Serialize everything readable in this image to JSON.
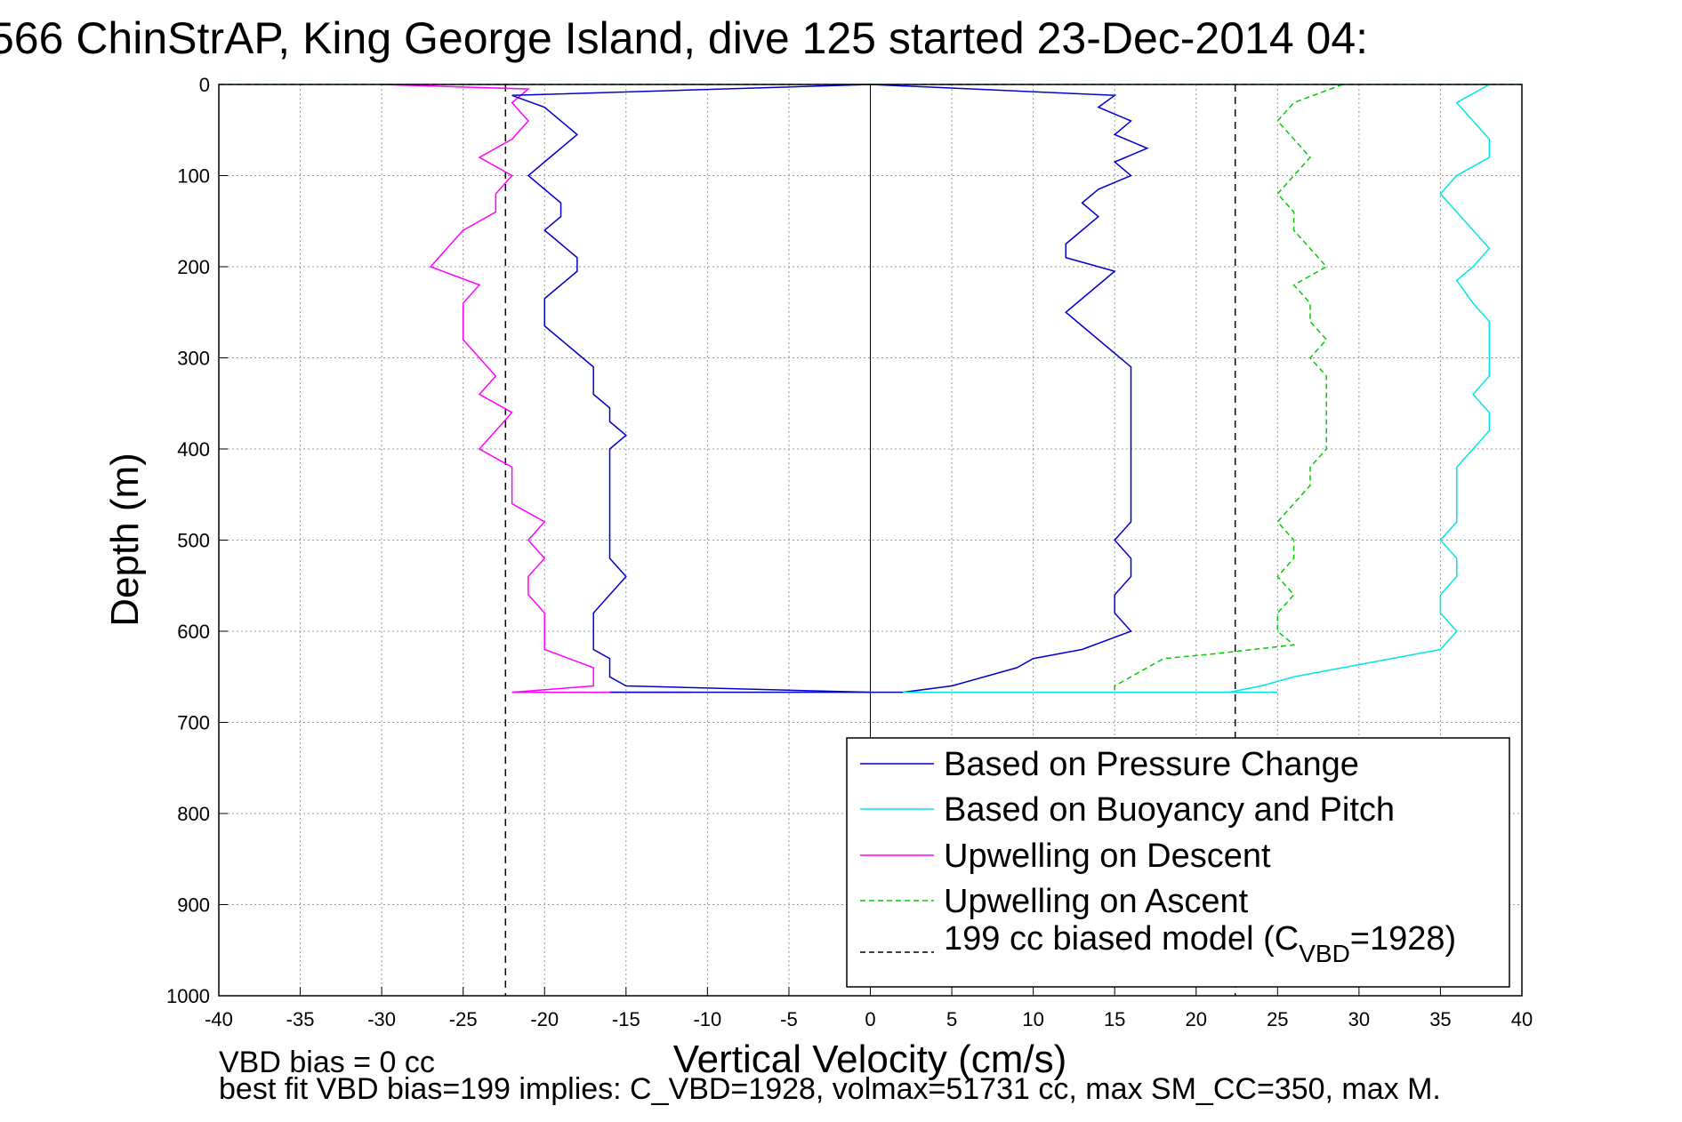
{
  "chart_data": {
    "type": "line",
    "title": "566 ChinStrAP, King George Island, dive 125 started 23-Dec-2014 04:",
    "xlabel": "Vertical Velocity (cm/s)",
    "ylabel": "Depth (m)",
    "xlim": [
      -40,
      40
    ],
    "ylim": [
      0,
      1000
    ],
    "y_reversed": true,
    "grid": true,
    "x_ticks": [
      "-40",
      "-35",
      "-30",
      "-25",
      "-20",
      "-15",
      "-10",
      "-5",
      "0",
      "5",
      "10",
      "15",
      "20",
      "25",
      "30",
      "35",
      "40"
    ],
    "y_ticks": [
      "0",
      "100",
      "200",
      "300",
      "400",
      "500",
      "600",
      "700",
      "800",
      "900",
      "1000"
    ],
    "legend_position": "bottom-right",
    "series": [
      {
        "name": "Based on Pressure Change",
        "color": "#0000cc",
        "style": "solid",
        "depth": [
          0,
          12,
          25,
          40,
          55,
          70,
          85,
          100,
          115,
          130,
          145,
          160,
          175,
          190,
          205,
          220,
          235,
          250,
          265,
          280,
          295,
          310,
          325,
          340,
          355,
          370,
          385,
          400,
          420,
          440,
          460,
          480,
          500,
          520,
          540,
          560,
          580,
          600,
          620,
          630,
          640,
          650,
          660,
          667
        ],
        "descent": [
          0,
          -22,
          -20,
          -19,
          -18,
          -19,
          -20,
          -21,
          -20,
          -19,
          -19,
          -20,
          -19,
          -18,
          -18,
          -19,
          -20,
          -20,
          -20,
          -19,
          -18,
          -17,
          -17,
          -17,
          -16,
          -16,
          -15,
          -16,
          -16,
          -16,
          -16,
          -16,
          -16,
          -16,
          -15,
          -16,
          -17,
          -17,
          -17,
          -16,
          -16,
          -16,
          -15,
          0
        ],
        "ascent": [
          0,
          15,
          14,
          16,
          15,
          17,
          15,
          16,
          14,
          13,
          14,
          13,
          12,
          12,
          15,
          14,
          13,
          12,
          13,
          14,
          15,
          16,
          16,
          16,
          16,
          16,
          16,
          16,
          16,
          16,
          16,
          16,
          15,
          16,
          16,
          15,
          15,
          16,
          13,
          10,
          9,
          7,
          5,
          2
        ]
      },
      {
        "name": "Based on Buoyancy and Pitch",
        "color": "#00e5e5",
        "style": "solid",
        "depth": [
          0,
          20,
          40,
          60,
          80,
          100,
          120,
          140,
          160,
          180,
          200,
          215,
          240,
          260,
          280,
          300,
          320,
          340,
          360,
          380,
          400,
          420,
          440,
          460,
          480,
          500,
          520,
          540,
          560,
          580,
          600,
          620,
          630,
          640,
          650,
          660,
          667
        ],
        "values": [
          38,
          36,
          37,
          38,
          38,
          36,
          35,
          36,
          37,
          38,
          37,
          36,
          37,
          38,
          38,
          38,
          38,
          37,
          38,
          38,
          37,
          36,
          36,
          36,
          36,
          35,
          36,
          36,
          35,
          35,
          36,
          35,
          32,
          29,
          26,
          24,
          22
        ]
      },
      {
        "name": "Upwelling on Descent",
        "color": "#ff00ff",
        "style": "solid",
        "depth": [
          0,
          5,
          20,
          40,
          60,
          80,
          100,
          120,
          140,
          160,
          180,
          200,
          220,
          240,
          260,
          280,
          300,
          320,
          340,
          360,
          380,
          400,
          420,
          440,
          460,
          480,
          500,
          520,
          540,
          560,
          580,
          600,
          620,
          640,
          660,
          667
        ],
        "values": [
          -30,
          -21,
          -22,
          -21,
          -22,
          -24,
          -22,
          -23,
          -23,
          -25,
          -26,
          -27,
          -24,
          -25,
          -25,
          -25,
          -24,
          -23,
          -24,
          -22,
          -23,
          -24,
          -22,
          -22,
          -22,
          -20,
          -21,
          -20,
          -21,
          -21,
          -20,
          -20,
          -20,
          -17,
          -17,
          -22
        ]
      },
      {
        "name": "Upwelling on Ascent",
        "color": "#00cc00",
        "style": "dashed",
        "depth": [
          0,
          20,
          40,
          60,
          80,
          100,
          120,
          140,
          160,
          180,
          200,
          220,
          240,
          260,
          280,
          300,
          320,
          340,
          360,
          380,
          400,
          420,
          440,
          460,
          480,
          500,
          520,
          540,
          560,
          580,
          600,
          615,
          625,
          630,
          640,
          650,
          660,
          667
        ],
        "values": [
          29,
          26,
          25,
          26,
          27,
          26,
          25,
          26,
          26,
          27,
          28,
          26,
          27,
          27,
          28,
          27,
          28,
          28,
          28,
          28,
          28,
          27,
          27,
          26,
          25,
          26,
          26,
          25,
          26,
          25,
          25,
          26,
          21,
          18,
          17,
          16,
          15,
          15
        ]
      },
      {
        "name": "199 cc biased model (C",
        "name_sub": "VBD",
        "name_tail": "=1928)",
        "color": "#000000",
        "style": "dashed",
        "vertical_lines_x": [
          -22.4,
          22.4
        ]
      }
    ],
    "footnotes": [
      "VBD bias = 0 cc",
      "best fit VBD bias=199 implies: C_VBD=1928, volmax=51731 cc, max SM_CC=350, max M."
    ]
  }
}
